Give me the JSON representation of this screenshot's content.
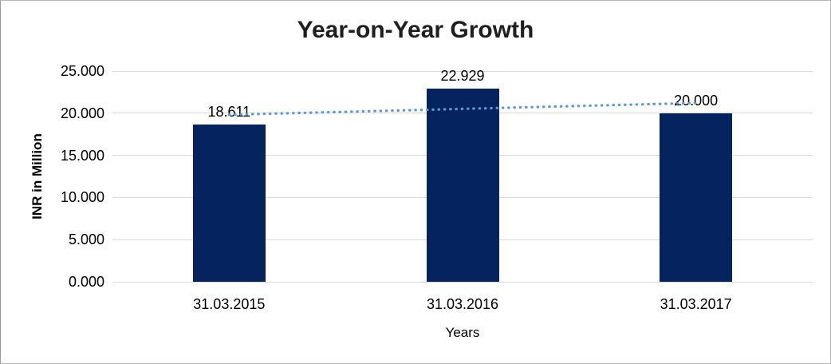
{
  "chart_data": {
    "type": "bar",
    "title": "Year-on-Year Growth",
    "xlabel": "Years",
    "ylabel": "INR in Million",
    "categories": [
      "31.03.2015",
      "31.03.2016",
      "31.03.2017"
    ],
    "values": [
      18.611,
      22.929,
      20.0
    ],
    "value_labels": [
      "18.611",
      "22.929",
      "20.000"
    ],
    "ylim": [
      0,
      25
    ],
    "yticks": [
      0,
      5,
      10,
      15,
      20,
      25
    ],
    "ytick_labels": [
      "0.000",
      "5.000",
      "10.000",
      "15.000",
      "20.000",
      "25.000"
    ],
    "grid": true,
    "legend_position": "none",
    "trendline": {
      "type": "linear",
      "style": "dotted"
    },
    "colors": {
      "bar": "#05235f",
      "gridline": "#d9d9d9",
      "trendline": "#5b9bd5",
      "text": "#000000",
      "title_text": "#1f1f1f",
      "frame_border": "#b7b7b7"
    }
  }
}
